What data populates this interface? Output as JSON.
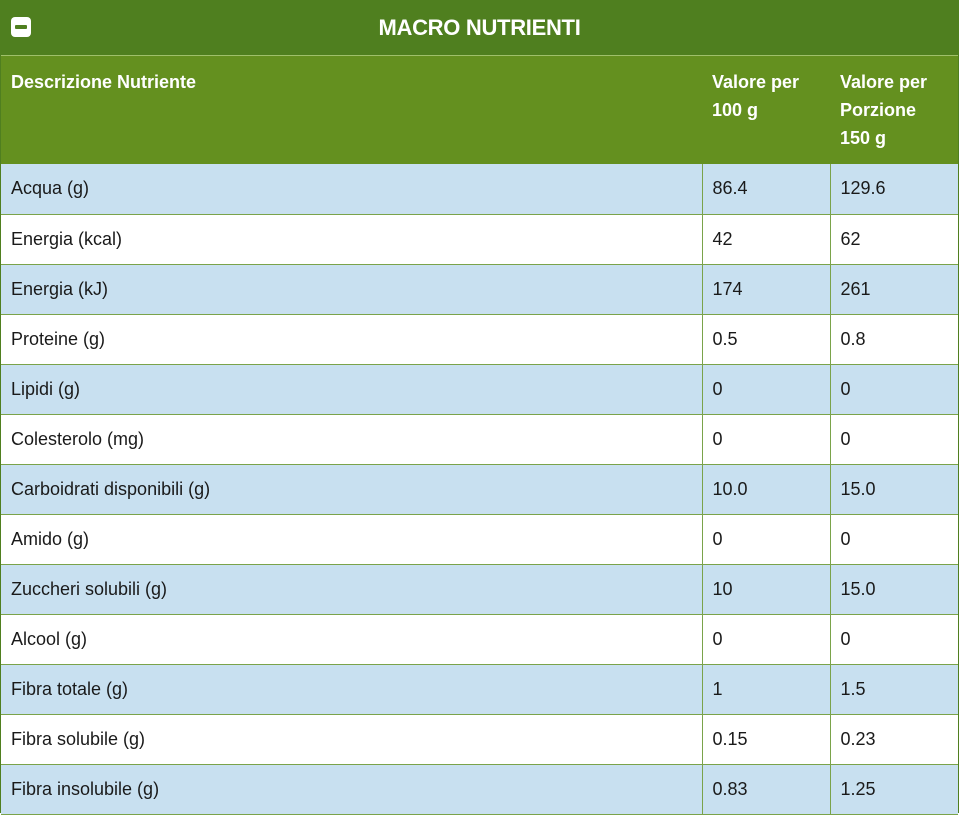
{
  "panel": {
    "title": "MACRO NUTRIENTI",
    "collapse_icon": "minus-square-icon"
  },
  "colors": {
    "header_dark": "#4f7f1f",
    "header_green": "#64901f",
    "row_blue": "#c8e0f0",
    "row_white": "#ffffff",
    "grid_line": "#7aa34a"
  },
  "table": {
    "headers": [
      "Descrizione Nutriente",
      "Valore per 100 g",
      "Valore per Porzione 150 g"
    ],
    "rows": [
      {
        "name": "Acqua (g)",
        "per100": "86.4",
        "perPortion": "129.6"
      },
      {
        "name": "Energia (kcal)",
        "per100": "42",
        "perPortion": "62"
      },
      {
        "name": "Energia (kJ)",
        "per100": "174",
        "perPortion": "261"
      },
      {
        "name": "Proteine (g)",
        "per100": "0.5",
        "perPortion": "0.8"
      },
      {
        "name": "Lipidi (g)",
        "per100": "0",
        "perPortion": "0"
      },
      {
        "name": "Colesterolo (mg)",
        "per100": "0",
        "perPortion": "0"
      },
      {
        "name": "Carboidrati disponibili (g)",
        "per100": "10.0",
        "perPortion": "15.0"
      },
      {
        "name": "Amido (g)",
        "per100": "0",
        "perPortion": "0"
      },
      {
        "name": "Zuccheri solubili (g)",
        "per100": "10",
        "perPortion": "15.0"
      },
      {
        "name": "Alcool (g)",
        "per100": "0",
        "perPortion": "0"
      },
      {
        "name": "Fibra totale (g)",
        "per100": "1",
        "perPortion": "1.5"
      },
      {
        "name": "Fibra solubile (g)",
        "per100": "0.15",
        "perPortion": "0.23"
      },
      {
        "name": "Fibra insolubile (g)",
        "per100": "0.83",
        "perPortion": "1.25"
      }
    ]
  }
}
